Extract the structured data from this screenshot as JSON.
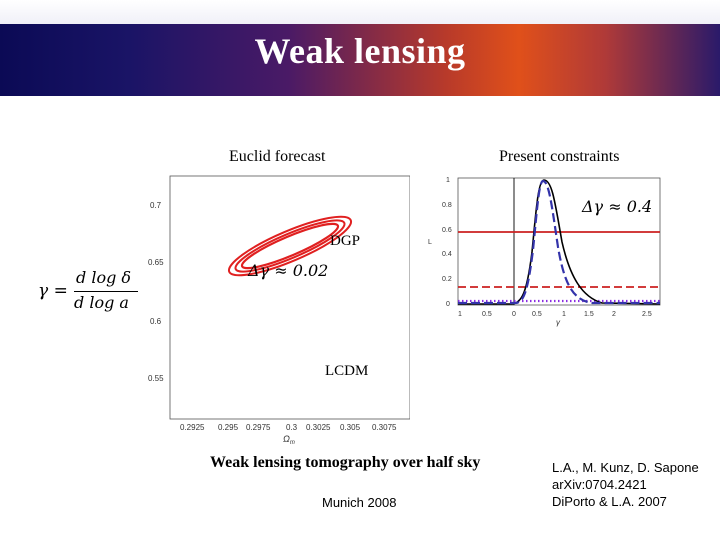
{
  "slide": {
    "title": "Weak lensing",
    "left_caption": "Euclid forecast",
    "right_caption": "Present constraints",
    "formula": {
      "lhs": "γ =",
      "numerator": "d log δ",
      "denominator": "d log a"
    },
    "bottom_caption": "Weak lensing tomography over half sky",
    "footer_left": "Munich 2008",
    "refs": [
      "L.A., M. Kunz, D. Sapone",
      "arXiv:0704.2421",
      "DiPorto & L.A. 2007"
    ]
  },
  "chart_data": [
    {
      "type": "contour",
      "annotations": {
        "dgp": "DGP",
        "lcdm": "LCDM",
        "delta": "Δγ ≈ 0.02"
      },
      "yticks": [
        "0.7",
        "0.65",
        "0.6",
        "0.55"
      ],
      "xticks": [
        "0.2925",
        "0.295",
        "0.2975",
        "0.3",
        "0.3025",
        "0.305",
        "0.3075"
      ],
      "xlabel": "Ω",
      "xlabel_sub": "m",
      "colors": {
        "contour": "#e02020"
      }
    },
    {
      "type": "line",
      "annotation": "Δγ ≈ 0.4",
      "yticks": [
        "1",
        "0.8",
        "0.6",
        "0.4",
        "0.2",
        "0"
      ],
      "xticks": [
        "1",
        "0.5",
        "0",
        "0.5",
        "1",
        "1.5",
        "2",
        "2.5"
      ],
      "xlabel": "γ",
      "ylabel": "L",
      "colors": {
        "solid": "#000000",
        "dashed": "#3333aa",
        "limits": "#cc2020",
        "dots": "#8a2be2"
      }
    }
  ]
}
